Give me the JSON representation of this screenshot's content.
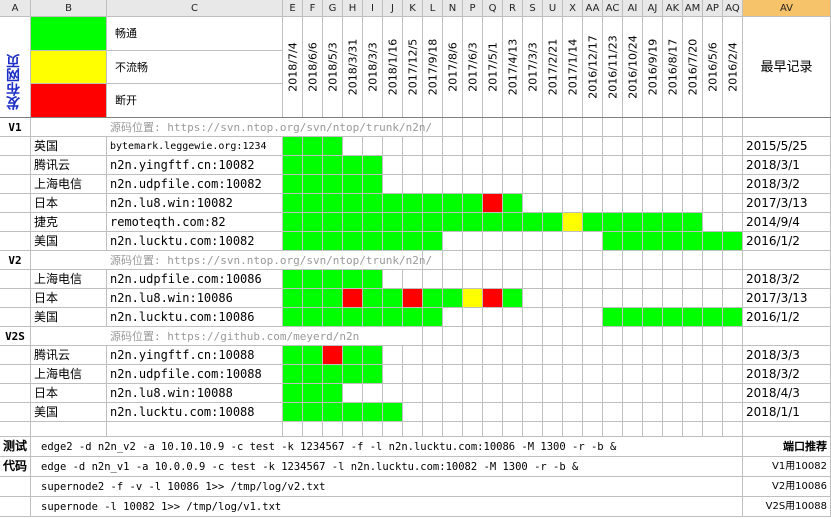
{
  "column_headers": [
    "A",
    "B",
    "C",
    "E",
    "F",
    "G",
    "H",
    "I",
    "J",
    "K",
    "L",
    "N",
    "P",
    "Q",
    "R",
    "S",
    "U",
    "X",
    "AA",
    "AC",
    "AI",
    "AJ",
    "AK",
    "AM",
    "AP",
    "AQ",
    "AV"
  ],
  "legend": {
    "title": "发布网页",
    "items": [
      {
        "color": "#00ff00",
        "label": "畅通"
      },
      {
        "color": "#ffff00",
        "label": "不流畅"
      },
      {
        "color": "#ff0000",
        "label": "断开"
      }
    ]
  },
  "dates": [
    "2018/7/4",
    "2018/6/6",
    "2018/5/3",
    "2018/3/31",
    "2018/3/3",
    "2018/1/16",
    "2017/12/5",
    "2017/9/18",
    "2017/8/6",
    "2017/6/3",
    "2017/5/1",
    "2017/4/13",
    "2017/3/3",
    "2017/2/21",
    "2017/1/14",
    "2016/12/17",
    "2016/11/23",
    "2016/10/24",
    "2016/9/19",
    "2016/8/17",
    "2016/7/20",
    "2016/5/6",
    "2016/2/4"
  ],
  "latest_label": "最早记录",
  "sections": [
    {
      "version": "V1",
      "source": "源码位置: https://svn.ntop.org/svn/ntop/trunk/n2n/",
      "rows": [
        {
          "location": "英国",
          "server": "bytemark.leggewie.org:1234",
          "earliest": "2015/5/25",
          "status": "GGGSSSSSSSSSSSSSSSSSSSS"
        },
        {
          "location": "腾讯云",
          "server": "n2n.yingftf.cn:10082",
          "earliest": "2018/3/1",
          "status": "GGGGGSSSSSSSSSSSSSSSSSS"
        },
        {
          "location": "上海电信",
          "server": "n2n.udpfile.com:10082",
          "earliest": "2018/3/2",
          "status": "GGGGGSSSSSSSSSSSSSSSSSS"
        },
        {
          "location": "日本",
          "server": "n2n.lu8.win:10082",
          "earliest": "2017/3/13",
          "status": "GGGGGGGGGGRGSSSSSSSSSSS"
        },
        {
          "location": "捷克",
          "server": "remoteqth.com:82",
          "earliest": "2014/9/4",
          "status": "GGGGGGGGGGGGGGYGGGGGGSS"
        },
        {
          "location": "美国",
          "server": "n2n.lucktu.com:10082",
          "earliest": "2016/1/2",
          "status": "GGGGGGGGSSSSSSSSGGGGGGG"
        }
      ]
    },
    {
      "version": "V2",
      "source": "源码位置: https://svn.ntop.org/svn/ntop/trunk/n2n/",
      "rows": [
        {
          "location": "上海电信",
          "server": "n2n.udpfile.com:10086",
          "earliest": "2018/3/2",
          "status": "GGGGGSSSSSSSSSSSSSSSSSS"
        },
        {
          "location": "日本",
          "server": "n2n.lu8.win:10086",
          "earliest": "2017/3/13",
          "status": "GGGRGGRGGYRGSSSSSSSSSSS"
        },
        {
          "location": "美国",
          "server": "n2n.lucktu.com:10086",
          "earliest": "2016/1/2",
          "status": "GGGGGGGGSSSSSSSSGGGGGGG"
        }
      ]
    },
    {
      "version": "V2S",
      "source": "源码位置: https://github.com/meyerd/n2n",
      "rows": [
        {
          "location": "腾讯云",
          "server": "n2n.yingftf.cn:10088",
          "earliest": "2018/3/3",
          "status": "GGRGGSSSSSSSSSSSSSSSSSS"
        },
        {
          "location": "上海电信",
          "server": "n2n.udpfile.com:10088",
          "earliest": "2018/3/2",
          "status": "GGGGGSSSSSSSSSSSSSSSSSS"
        },
        {
          "location": "日本",
          "server": "n2n.lu8.win:10088",
          "earliest": "2018/4/3",
          "status": "GGGSSSSSSSSSSSSSSSSSSSS"
        },
        {
          "location": "美国",
          "server": "n2n.lucktu.com:10088",
          "earliest": "2018/1/1",
          "status": "GGGGGGSSSSSSSSSSSSSSSSS"
        }
      ]
    }
  ],
  "test_code": {
    "label1": "测试",
    "label2": "代码",
    "lines": [
      "edge2 -d n2n_v2 -a 10.10.10.9 -c test -k 1234567 -f -l n2n.lucktu.com:10086 -M 1300 -r -b &",
      "edge -d n2n_v1 -a 10.0.0.9 -c test -k 1234567 -l n2n.lucktu.com:10082 -M 1300 -r -b &",
      "supernode2 -f -v -l 10086 1>> /tmp/log/v2.txt",
      "supernode -l 10082  1>> /tmp/log/v1.txt"
    ],
    "port_title": "端口推荐",
    "ports": [
      "V1用10082",
      "V2用10086",
      "V2S用10088"
    ]
  }
}
